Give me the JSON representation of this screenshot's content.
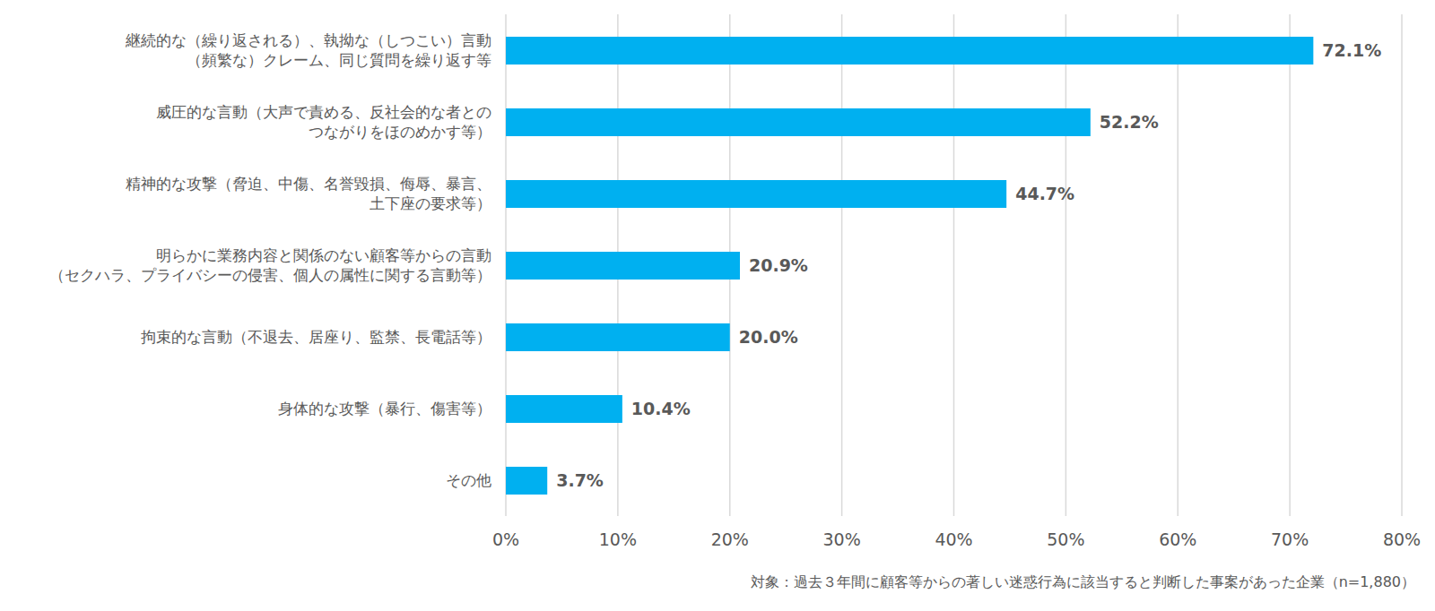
{
  "chart_data": {
    "type": "bar",
    "orientation": "horizontal",
    "categories": [
      "継続的な（繰り返される）、執拗な（しつこい）言動\n（頻繁な）クレーム、同じ質問を繰り返す等",
      "威圧的な言動（大声で責める、反社会的な者との\nつながりをほのめかす等）",
      "精神的な攻撃（脅迫、中傷、名誉毀損、侮辱、暴言、\n土下座の要求等）",
      "明らかに業務内容と関係のない顧客等からの言動\n（セクハラ、プライバシーの侵害、個人の属性に関する言動等）",
      "拘束的な言動（不退去、居座り、監禁、長電話等）",
      "身体的な攻撃（暴行、傷害等）",
      "その他"
    ],
    "values": [
      72.1,
      52.2,
      44.7,
      20.9,
      20.0,
      10.4,
      3.7
    ],
    "value_labels": [
      "72.1%",
      "52.2%",
      "44.7%",
      "20.9%",
      "20.0%",
      "10.4%",
      "3.7%"
    ],
    "color": "#00b0f0",
    "xlim": [
      0,
      80
    ],
    "xticks": [
      {
        "value": 0,
        "label": "0%"
      },
      {
        "value": 10,
        "label": "10%"
      },
      {
        "value": 20,
        "label": "20%"
      },
      {
        "value": 30,
        "label": "30%"
      },
      {
        "value": 40,
        "label": "40%"
      },
      {
        "value": 50,
        "label": "50%"
      },
      {
        "value": 60,
        "label": "60%"
      },
      {
        "value": 70,
        "label": "70%"
      },
      {
        "value": 80,
        "label": "80%"
      }
    ],
    "grid": true,
    "data_labels": true,
    "note": "対象：過去３年間に顧客等からの著しい迷惑行為に該当すると判断した事案があった企業（n=1,880）"
  }
}
